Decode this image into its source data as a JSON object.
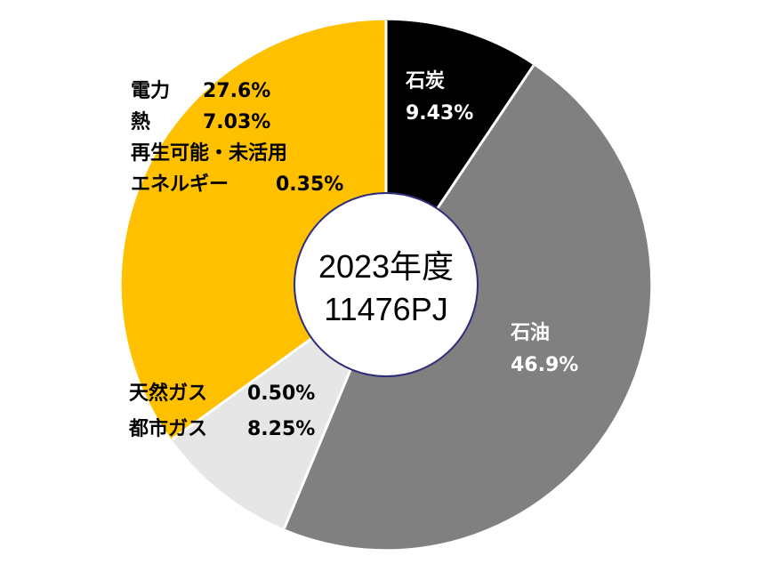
{
  "chart_data": {
    "type": "pie",
    "total_label": "2023年度",
    "total_value_label": "11476PJ",
    "slices": [
      {
        "label": "石炭",
        "value": 9.43,
        "value_label": "9.43%",
        "color": "#000000"
      },
      {
        "label": "石油",
        "value": 46.9,
        "value_label": "46.9%",
        "color": "#808080"
      },
      {
        "label": "天然ガス",
        "value": 0.5,
        "value_label": "0.50%",
        "color": "#e6e6e6"
      },
      {
        "label": "都市ガス",
        "value": 8.25,
        "value_label": "8.25%",
        "color": "#e6e6e6"
      },
      {
        "label": "電力",
        "value": 27.6,
        "value_label": "27.6%",
        "color": "#ffc000"
      },
      {
        "label": "熱",
        "value": 7.03,
        "value_label": "7.03%",
        "color": "#ffc000"
      },
      {
        "label": "再生可能・未活用エネルギー",
        "value": 0.35,
        "value_label": "0.35%",
        "color": "#ffc000"
      }
    ],
    "groups": [
      {
        "name": "coal",
        "slices": [
          0
        ],
        "color": "#000000"
      },
      {
        "name": "oil",
        "slices": [
          1
        ],
        "color": "#808080"
      },
      {
        "name": "gas",
        "slices": [
          2,
          3
        ],
        "color": "#e6e6e6"
      },
      {
        "name": "power-heat-renewable",
        "slices": [
          4,
          5,
          6
        ],
        "color": "#ffc000"
      }
    ],
    "label_texts": {
      "renewable_line1": "再生可能・未活用",
      "renewable_line2": "エネルギー"
    },
    "legend": "none"
  }
}
